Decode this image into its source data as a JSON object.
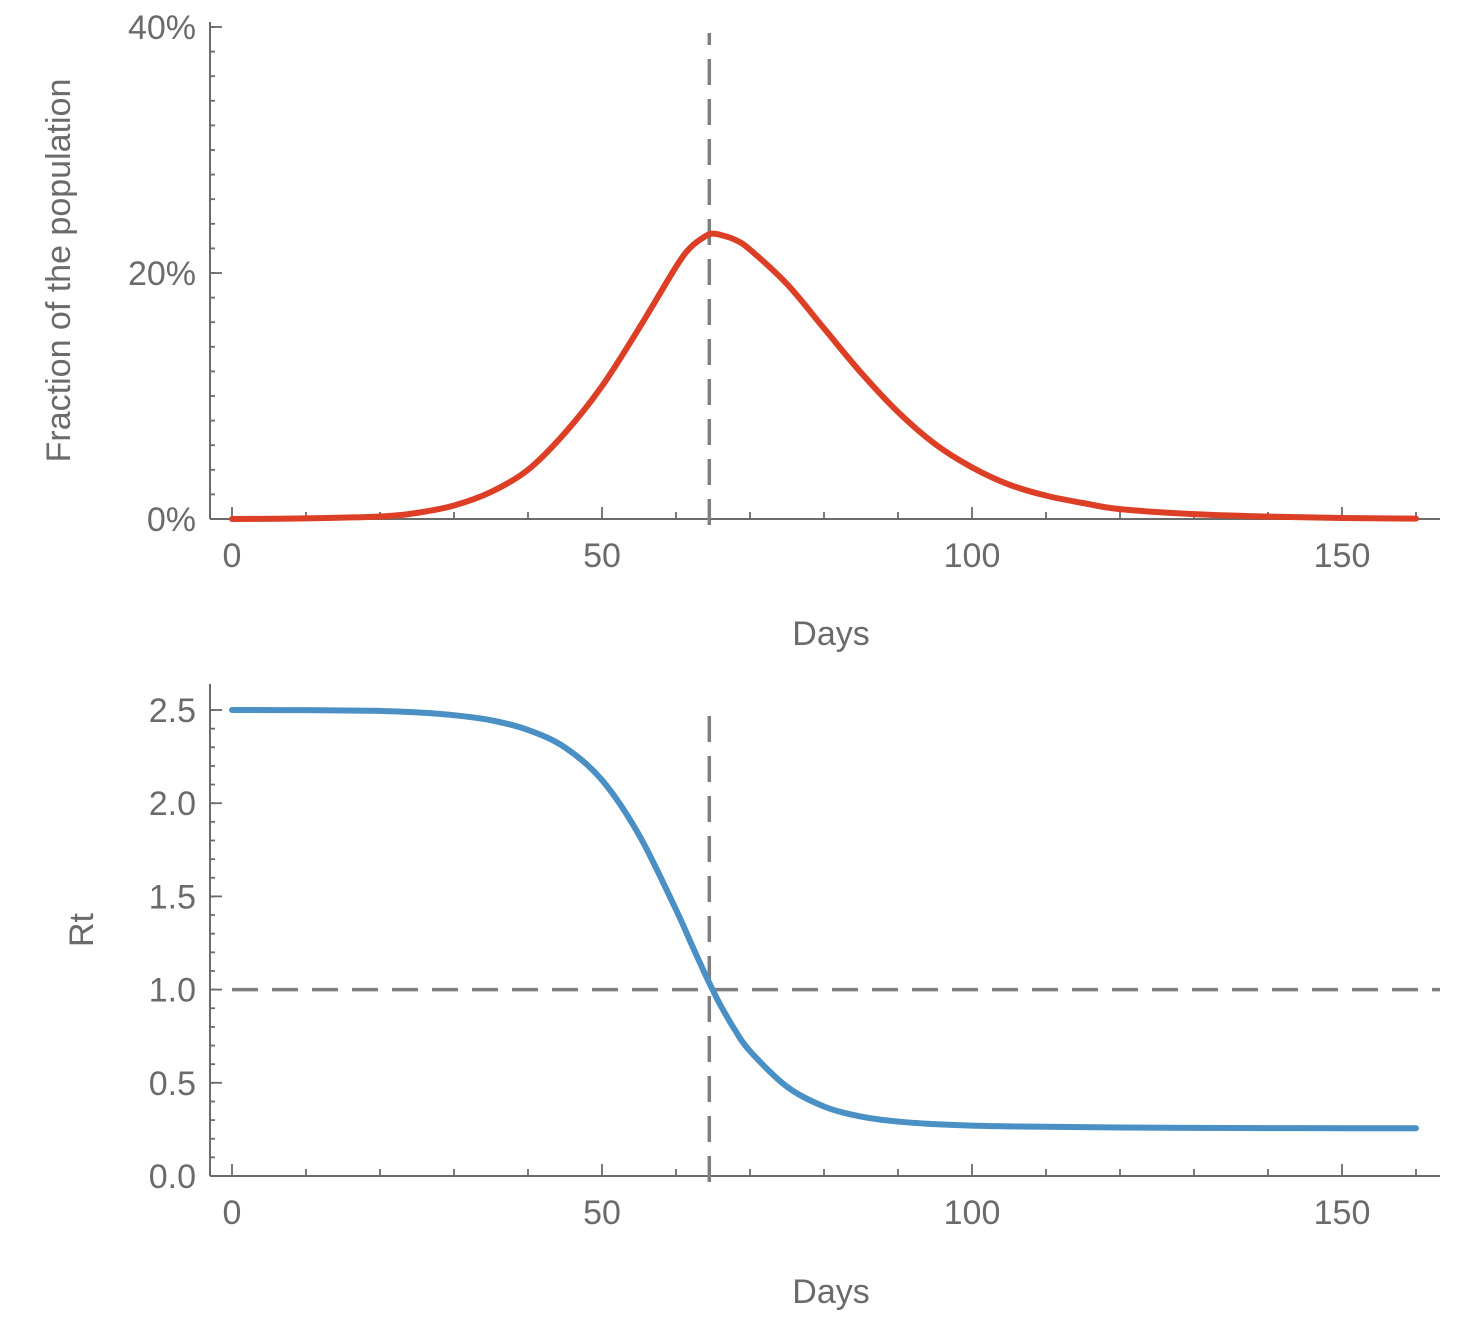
{
  "chart_data": [
    {
      "type": "line",
      "title": "",
      "xlabel": "Days",
      "ylabel": "Fraction of the population",
      "xlim": [
        0,
        160
      ],
      "ylim": [
        0,
        0.4
      ],
      "x_ticks": [
        "0",
        "50",
        "100",
        "150"
      ],
      "y_ticks": [
        "0%",
        "20%",
        "40%"
      ],
      "grid": false,
      "series": [
        {
          "color": "#dc3f26",
          "x": [
            0,
            10,
            20,
            25,
            30,
            35,
            40,
            45,
            50,
            55,
            60,
            62,
            64,
            65,
            66,
            68,
            70,
            75,
            80,
            85,
            90,
            95,
            100,
            105,
            110,
            115,
            120,
            130,
            140,
            150,
            160
          ],
          "y": [
            0.0,
            0.0005,
            0.002,
            0.005,
            0.011,
            0.022,
            0.04,
            0.07,
            0.108,
            0.155,
            0.205,
            0.221,
            0.23,
            0.232,
            0.231,
            0.227,
            0.219,
            0.191,
            0.155,
            0.119,
            0.087,
            0.061,
            0.042,
            0.028,
            0.019,
            0.013,
            0.008,
            0.004,
            0.002,
            0.0008,
            0.0003
          ]
        }
      ],
      "reference_lines": [
        {
          "orientation": "vertical",
          "x": 64.5,
          "style": "dashed",
          "color": "#7f7f7f"
        }
      ]
    },
    {
      "type": "line",
      "title": "",
      "xlabel": "Days",
      "ylabel": "Rt",
      "xlim": [
        0,
        160
      ],
      "ylim": [
        0,
        2.5
      ],
      "x_ticks": [
        "0",
        "50",
        "100",
        "150"
      ],
      "y_ticks": [
        "0.0",
        "0.5",
        "1.0",
        "1.5",
        "2.0",
        "2.5"
      ],
      "grid": false,
      "series": [
        {
          "color": "#4a90c4",
          "x": [
            0,
            10,
            20,
            25,
            30,
            35,
            40,
            45,
            50,
            55,
            60,
            62,
            64,
            65,
            66,
            68,
            70,
            75,
            80,
            85,
            90,
            95,
            100,
            105,
            110,
            120,
            130,
            140,
            150,
            160
          ],
          "y": [
            2.5,
            2.499,
            2.495,
            2.487,
            2.472,
            2.445,
            2.393,
            2.299,
            2.124,
            1.83,
            1.429,
            1.252,
            1.077,
            0.995,
            0.917,
            0.781,
            0.67,
            0.479,
            0.373,
            0.319,
            0.292,
            0.278,
            0.27,
            0.266,
            0.264,
            0.26,
            0.258,
            0.257,
            0.256,
            0.256
          ]
        }
      ],
      "reference_lines": [
        {
          "orientation": "vertical",
          "x": 64.5,
          "style": "dashed",
          "color": "#7f7f7f"
        },
        {
          "orientation": "horizontal",
          "y": 1.0,
          "style": "dashed",
          "color": "#7f7f7f"
        }
      ]
    }
  ]
}
